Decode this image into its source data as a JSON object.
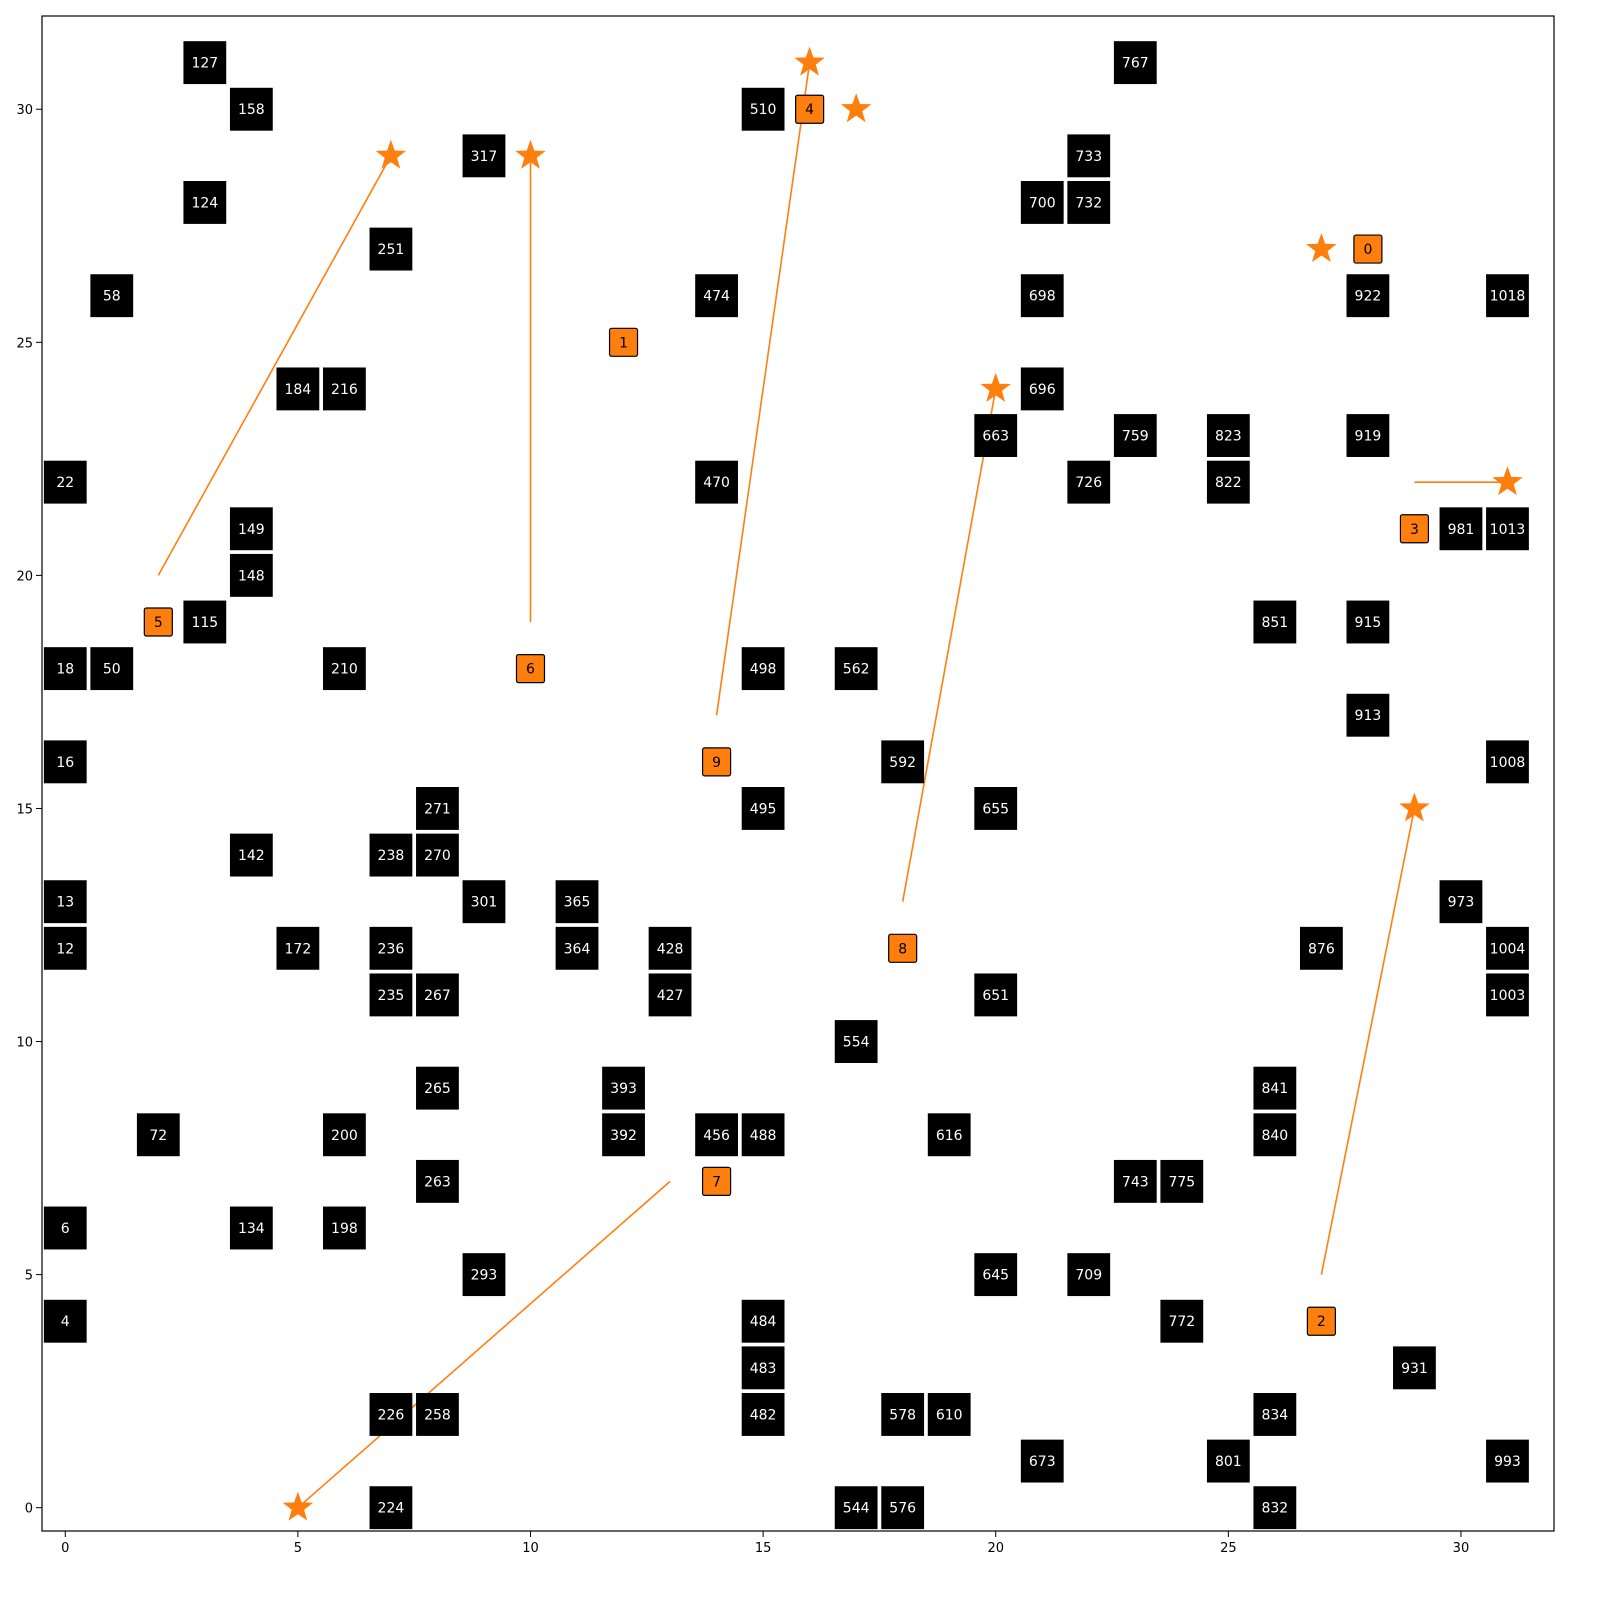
{
  "grid": {
    "x_ticks": [
      0,
      5,
      10,
      15,
      20,
      25,
      30
    ],
    "y_ticks": [
      0,
      5,
      10,
      15,
      20,
      25,
      30
    ],
    "xlim": [
      -0.5,
      32
    ],
    "ylim": [
      -0.5,
      32
    ]
  },
  "colors": {
    "obstacle": "#000000",
    "obstacle_text": "#ffffff",
    "agent": "#ff7f0e",
    "agent_text": "#000000",
    "path": "#ff7f0e"
  },
  "obstacles": [
    {
      "label": "127",
      "x": 3,
      "y": 31
    },
    {
      "label": "158",
      "x": 4,
      "y": 30
    },
    {
      "label": "124",
      "x": 3,
      "y": 28
    },
    {
      "label": "58",
      "x": 1,
      "y": 26
    },
    {
      "label": "184",
      "x": 5,
      "y": 24
    },
    {
      "label": "216",
      "x": 6,
      "y": 24
    },
    {
      "label": "251",
      "x": 7,
      "y": 27
    },
    {
      "label": "317",
      "x": 9,
      "y": 29
    },
    {
      "label": "22",
      "x": 0,
      "y": 22
    },
    {
      "label": "149",
      "x": 4,
      "y": 21
    },
    {
      "label": "148",
      "x": 4,
      "y": 20
    },
    {
      "label": "115",
      "x": 3,
      "y": 19
    },
    {
      "label": "18",
      "x": 0,
      "y": 18
    },
    {
      "label": "50",
      "x": 1,
      "y": 18
    },
    {
      "label": "210",
      "x": 6,
      "y": 18
    },
    {
      "label": "16",
      "x": 0,
      "y": 16
    },
    {
      "label": "271",
      "x": 8,
      "y": 15
    },
    {
      "label": "142",
      "x": 4,
      "y": 14
    },
    {
      "label": "238",
      "x": 7,
      "y": 14
    },
    {
      "label": "270",
      "x": 8,
      "y": 14
    },
    {
      "label": "13",
      "x": 0,
      "y": 13
    },
    {
      "label": "301",
      "x": 9,
      "y": 13
    },
    {
      "label": "365",
      "x": 11,
      "y": 13
    },
    {
      "label": "12",
      "x": 0,
      "y": 12
    },
    {
      "label": "172",
      "x": 5,
      "y": 12
    },
    {
      "label": "236",
      "x": 7,
      "y": 12
    },
    {
      "label": "364",
      "x": 11,
      "y": 12
    },
    {
      "label": "428",
      "x": 13,
      "y": 12
    },
    {
      "label": "235",
      "x": 7,
      "y": 11
    },
    {
      "label": "267",
      "x": 8,
      "y": 11
    },
    {
      "label": "427",
      "x": 13,
      "y": 11
    },
    {
      "label": "265",
      "x": 8,
      "y": 9
    },
    {
      "label": "393",
      "x": 12,
      "y": 9
    },
    {
      "label": "72",
      "x": 2,
      "y": 8
    },
    {
      "label": "200",
      "x": 6,
      "y": 8
    },
    {
      "label": "392",
      "x": 12,
      "y": 8
    },
    {
      "label": "456",
      "x": 14,
      "y": 8
    },
    {
      "label": "488",
      "x": 15,
      "y": 8
    },
    {
      "label": "263",
      "x": 8,
      "y": 7
    },
    {
      "label": "6",
      "x": 0,
      "y": 6
    },
    {
      "label": "134",
      "x": 4,
      "y": 6
    },
    {
      "label": "198",
      "x": 6,
      "y": 6
    },
    {
      "label": "293",
      "x": 9,
      "y": 5
    },
    {
      "label": "4",
      "x": 0,
      "y": 4
    },
    {
      "label": "484",
      "x": 15,
      "y": 4
    },
    {
      "label": "483",
      "x": 15,
      "y": 3
    },
    {
      "label": "226",
      "x": 7,
      "y": 2
    },
    {
      "label": "258",
      "x": 8,
      "y": 2
    },
    {
      "label": "482",
      "x": 15,
      "y": 2
    },
    {
      "label": "224",
      "x": 7,
      "y": 0
    },
    {
      "label": "510",
      "x": 15,
      "y": 30
    },
    {
      "label": "474",
      "x": 14,
      "y": 26
    },
    {
      "label": "470",
      "x": 14,
      "y": 22
    },
    {
      "label": "498",
      "x": 15,
      "y": 18
    },
    {
      "label": "562",
      "x": 17,
      "y": 18
    },
    {
      "label": "592",
      "x": 18,
      "y": 16
    },
    {
      "label": "495",
      "x": 15,
      "y": 15
    },
    {
      "label": "554",
      "x": 17,
      "y": 10
    },
    {
      "label": "616",
      "x": 19,
      "y": 8
    },
    {
      "label": "578",
      "x": 18,
      "y": 2
    },
    {
      "label": "610",
      "x": 19,
      "y": 2
    },
    {
      "label": "544",
      "x": 17,
      "y": 0
    },
    {
      "label": "576",
      "x": 18,
      "y": 0
    },
    {
      "label": "767",
      "x": 23,
      "y": 31
    },
    {
      "label": "733",
      "x": 22,
      "y": 29
    },
    {
      "label": "700",
      "x": 21,
      "y": 28
    },
    {
      "label": "732",
      "x": 22,
      "y": 28
    },
    {
      "label": "698",
      "x": 21,
      "y": 26
    },
    {
      "label": "696",
      "x": 21,
      "y": 24
    },
    {
      "label": "663",
      "x": 20,
      "y": 23
    },
    {
      "label": "759",
      "x": 23,
      "y": 23
    },
    {
      "label": "823",
      "x": 25,
      "y": 23
    },
    {
      "label": "726",
      "x": 22,
      "y": 22
    },
    {
      "label": "822",
      "x": 25,
      "y": 22
    },
    {
      "label": "655",
      "x": 20,
      "y": 15
    },
    {
      "label": "651",
      "x": 20,
      "y": 11
    },
    {
      "label": "743",
      "x": 23,
      "y": 7
    },
    {
      "label": "775",
      "x": 24,
      "y": 7
    },
    {
      "label": "645",
      "x": 20,
      "y": 5
    },
    {
      "label": "709",
      "x": 22,
      "y": 5
    },
    {
      "label": "772",
      "x": 24,
      "y": 4
    },
    {
      "label": "673",
      "x": 21,
      "y": 1
    },
    {
      "label": "801",
      "x": 25,
      "y": 1
    },
    {
      "label": "834",
      "x": 26,
      "y": 2
    },
    {
      "label": "832",
      "x": 26,
      "y": 0
    },
    {
      "label": "922",
      "x": 28,
      "y": 26
    },
    {
      "label": "1018",
      "x": 31,
      "y": 26
    },
    {
      "label": "919",
      "x": 28,
      "y": 23
    },
    {
      "label": "981",
      "x": 30,
      "y": 21
    },
    {
      "label": "1013",
      "x": 31,
      "y": 21
    },
    {
      "label": "851",
      "x": 26,
      "y": 19
    },
    {
      "label": "915",
      "x": 28,
      "y": 19
    },
    {
      "label": "913",
      "x": 28,
      "y": 17
    },
    {
      "label": "1008",
      "x": 31,
      "y": 16
    },
    {
      "label": "973",
      "x": 30,
      "y": 13
    },
    {
      "label": "876",
      "x": 27,
      "y": 12
    },
    {
      "label": "1004",
      "x": 31,
      "y": 12
    },
    {
      "label": "1003",
      "x": 31,
      "y": 11
    },
    {
      "label": "841",
      "x": 26,
      "y": 9
    },
    {
      "label": "840",
      "x": 26,
      "y": 8
    },
    {
      "label": "931",
      "x": 29,
      "y": 3
    },
    {
      "label": "993",
      "x": 31,
      "y": 1
    }
  ],
  "agents": [
    {
      "label": "0",
      "x": 28,
      "y": 27
    },
    {
      "label": "1",
      "x": 12,
      "y": 25
    },
    {
      "label": "2",
      "x": 27,
      "y": 4
    },
    {
      "label": "3",
      "x": 29,
      "y": 21
    },
    {
      "label": "4",
      "x": 16,
      "y": 30
    },
    {
      "label": "5",
      "x": 2,
      "y": 19
    },
    {
      "label": "6",
      "x": 10,
      "y": 18
    },
    {
      "label": "7",
      "x": 14,
      "y": 7
    },
    {
      "label": "8",
      "x": 18,
      "y": 12
    },
    {
      "label": "9",
      "x": 14,
      "y": 16
    }
  ],
  "goals": [
    {
      "x": 7,
      "y": 29
    },
    {
      "x": 10,
      "y": 29
    },
    {
      "x": 16,
      "y": 31
    },
    {
      "x": 17,
      "y": 30
    },
    {
      "x": 27,
      "y": 27
    },
    {
      "x": 20,
      "y": 24
    },
    {
      "x": 31,
      "y": 22
    },
    {
      "x": 29,
      "y": 15
    },
    {
      "x": 5,
      "y": 0
    }
  ],
  "paths": [
    {
      "from": [
        2,
        20
      ],
      "to": [
        7,
        29
      ]
    },
    {
      "from": [
        10,
        19
      ],
      "to": [
        10,
        29
      ]
    },
    {
      "from": [
        14,
        17
      ],
      "to": [
        16,
        31
      ]
    },
    {
      "from": [
        18,
        13
      ],
      "to": [
        20,
        24
      ]
    },
    {
      "from": [
        29,
        22
      ],
      "to": [
        31,
        22
      ]
    },
    {
      "from": [
        27,
        5
      ],
      "to": [
        29,
        15
      ]
    },
    {
      "from": [
        13,
        7
      ],
      "to": [
        5,
        0
      ]
    }
  ]
}
